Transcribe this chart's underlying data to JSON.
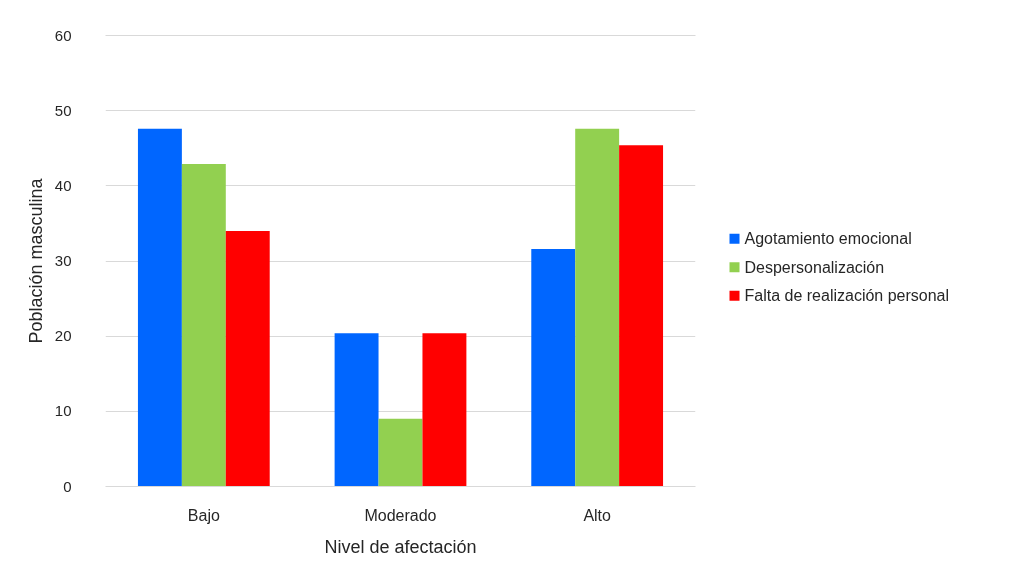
{
  "chart_data": {
    "type": "bar",
    "xlabel": "Nivel de afectación",
    "ylabel": "Población masculina",
    "categories": [
      "Bajo",
      "Moderado",
      "Alto"
    ],
    "series": [
      {
        "name": "Agotamiento emocional",
        "color": "#0066ff",
        "values": [
          47.6,
          20.4,
          31.6
        ]
      },
      {
        "name": "Despersonalización",
        "color": "#92d050",
        "values": [
          42.9,
          9.0,
          47.6
        ]
      },
      {
        "name": "Falta de realización personal",
        "color": "#ff0000",
        "values": [
          34.0,
          20.4,
          45.4
        ]
      }
    ],
    "ylim": [
      0,
      60
    ],
    "yticks": [
      0,
      10,
      20,
      30,
      40,
      50,
      60
    ],
    "grid": "y",
    "legend": "right"
  }
}
